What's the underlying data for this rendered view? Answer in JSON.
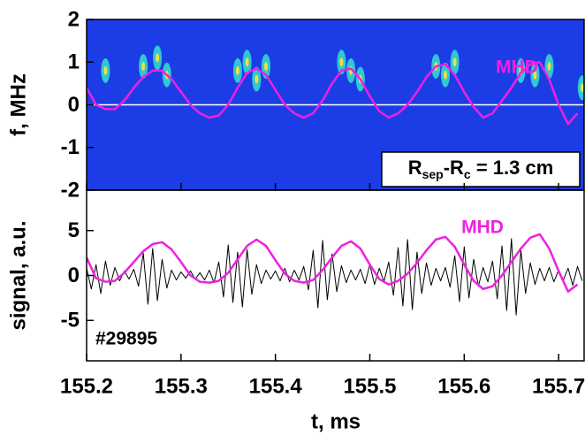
{
  "chart_data": [
    {
      "type": "spectrogram",
      "ylabel": "f, MHz",
      "background": "#1c3de6",
      "xlim": [
        155.2,
        155.727
      ],
      "ylim": [
        -2,
        2
      ],
      "yticks": [
        -2,
        -1,
        0,
        1,
        2
      ],
      "hline": 0,
      "bursts": {
        "color": "#33e0d0",
        "core_color": "#f0e040",
        "t": [
          155.22,
          155.26,
          155.275,
          155.285,
          155.36,
          155.37,
          155.38,
          155.39,
          155.47,
          155.48,
          155.49,
          155.57,
          155.58,
          155.59,
          155.66,
          155.675,
          155.69,
          155.725
        ],
        "f": [
          0.8,
          0.9,
          1.1,
          0.7,
          0.8,
          1.0,
          0.6,
          0.9,
          1.0,
          0.8,
          0.6,
          0.9,
          0.7,
          1.0,
          0.8,
          0.7,
          0.9,
          0.4
        ]
      },
      "annotation": [
        "R",
        "sep",
        "-R",
        "c",
        " = 1.3 cm"
      ],
      "series": [
        {
          "name": "MHD",
          "color": "#f020e0",
          "x": [
            155.2,
            155.21,
            155.22,
            155.23,
            155.24,
            155.25,
            155.26,
            155.27,
            155.28,
            155.29,
            155.3,
            155.31,
            155.32,
            155.33,
            155.34,
            155.35,
            155.36,
            155.37,
            155.38,
            155.39,
            155.4,
            155.41,
            155.42,
            155.43,
            155.44,
            155.45,
            155.46,
            155.47,
            155.48,
            155.49,
            155.5,
            155.51,
            155.52,
            155.53,
            155.54,
            155.55,
            155.56,
            155.57,
            155.58,
            155.59,
            155.6,
            155.61,
            155.62,
            155.63,
            155.64,
            155.65,
            155.66,
            155.67,
            155.68,
            155.69,
            155.7,
            155.71,
            155.72
          ],
          "values": [
            0.4,
            0.0,
            -0.1,
            -0.1,
            0.1,
            0.4,
            0.65,
            0.8,
            0.8,
            0.6,
            0.3,
            0.0,
            -0.2,
            -0.3,
            -0.25,
            0.0,
            0.4,
            0.75,
            0.85,
            0.7,
            0.35,
            0.0,
            -0.2,
            -0.3,
            -0.2,
            0.1,
            0.5,
            0.8,
            0.85,
            0.6,
            0.2,
            -0.15,
            -0.3,
            -0.2,
            0.0,
            0.3,
            0.65,
            0.9,
            0.95,
            0.7,
            0.3,
            -0.05,
            -0.3,
            -0.2,
            0.1,
            0.4,
            0.75,
            0.95,
            1.0,
            0.6,
            0.0,
            -0.45,
            -0.2
          ]
        }
      ]
    },
    {
      "type": "line",
      "ylabel": "signal, a.u.",
      "xlabel": "t, ms",
      "shot": "#29895",
      "xlim": [
        155.2,
        155.727
      ],
      "xticks": [
        155.2,
        155.3,
        155.4,
        155.5,
        155.6,
        155.7
      ],
      "ylim": [
        -9.5,
        9.5
      ],
      "yticks": [
        -5,
        0,
        5
      ],
      "series": [
        {
          "color": "#000000",
          "x": [
            155.2,
            155.205,
            155.21,
            155.215,
            155.22,
            155.225,
            155.23,
            155.235,
            155.24,
            155.245,
            155.25,
            155.255,
            155.26,
            155.265,
            155.27,
            155.275,
            155.28,
            155.285,
            155.29,
            155.295,
            155.3,
            155.305,
            155.31,
            155.315,
            155.32,
            155.325,
            155.33,
            155.335,
            155.34,
            155.345,
            155.35,
            155.355,
            155.36,
            155.365,
            155.37,
            155.375,
            155.38,
            155.385,
            155.39,
            155.395,
            155.4,
            155.405,
            155.41,
            155.415,
            155.42,
            155.425,
            155.43,
            155.435,
            155.44,
            155.445,
            155.45,
            155.455,
            155.46,
            155.465,
            155.47,
            155.475,
            155.48,
            155.485,
            155.49,
            155.495,
            155.5,
            155.505,
            155.51,
            155.515,
            155.52,
            155.525,
            155.53,
            155.535,
            155.54,
            155.545,
            155.55,
            155.555,
            155.56,
            155.565,
            155.57,
            155.575,
            155.58,
            155.585,
            155.59,
            155.595,
            155.6,
            155.605,
            155.61,
            155.615,
            155.62,
            155.625,
            155.63,
            155.635,
            155.64,
            155.645,
            155.65,
            155.655,
            155.66,
            155.665,
            155.67,
            155.675,
            155.68,
            155.685,
            155.69,
            155.695,
            155.7,
            155.705,
            155.71,
            155.715,
            155.72,
            155.725
          ],
          "values": [
            0.8,
            -1.5,
            1.2,
            -2.0,
            1.6,
            -1.1,
            0.9,
            -0.6,
            0.5,
            -0.4,
            0.7,
            -1.2,
            2.5,
            -3.2,
            3.0,
            -2.8,
            1.8,
            -1.4,
            0.6,
            -0.5,
            0.4,
            -0.3,
            0.5,
            -0.4,
            0.3,
            -0.5,
            0.6,
            -0.8,
            1.5,
            -2.4,
            3.4,
            -3.0,
            2.6,
            -3.5,
            2.9,
            -2.1,
            1.2,
            -0.9,
            0.6,
            -0.4,
            0.5,
            -0.6,
            0.8,
            -0.7,
            0.6,
            -0.5,
            1.0,
            -1.6,
            2.8,
            -3.6,
            3.9,
            -2.7,
            2.4,
            -1.8,
            1.1,
            -0.8,
            0.6,
            -0.5,
            0.7,
            -0.9,
            1.2,
            -1.0,
            0.8,
            -0.7,
            1.5,
            -2.2,
            3.1,
            -3.4,
            4.0,
            -3.8,
            2.6,
            -2.0,
            1.4,
            -1.1,
            0.8,
            -0.6,
            0.9,
            -1.3,
            2.2,
            -2.9,
            3.2,
            -2.5,
            1.8,
            -1.2,
            0.9,
            -0.7,
            1.6,
            -2.6,
            3.3,
            -3.9,
            4.1,
            -4.4,
            2.8,
            -2.0,
            1.4,
            -1.0,
            0.8,
            -0.6,
            0.9,
            -0.7,
            0.6,
            -0.5,
            0.8,
            -1.1,
            1.0,
            -0.6
          ]
        },
        {
          "name": "MHD",
          "color": "#f020e0",
          "x": [
            155.2,
            155.21,
            155.22,
            155.23,
            155.24,
            155.25,
            155.26,
            155.27,
            155.28,
            155.29,
            155.3,
            155.31,
            155.32,
            155.33,
            155.34,
            155.35,
            155.36,
            155.37,
            155.38,
            155.39,
            155.4,
            155.41,
            155.42,
            155.43,
            155.44,
            155.45,
            155.46,
            155.47,
            155.48,
            155.49,
            155.5,
            155.51,
            155.52,
            155.53,
            155.54,
            155.55,
            155.56,
            155.57,
            155.58,
            155.59,
            155.6,
            155.61,
            155.62,
            155.63,
            155.64,
            155.65,
            155.66,
            155.67,
            155.68,
            155.69,
            155.7,
            155.71,
            155.72
          ],
          "values": [
            2.0,
            -0.3,
            -0.7,
            -0.6,
            0.3,
            1.5,
            2.7,
            3.5,
            3.7,
            2.9,
            1.5,
            0.0,
            -0.7,
            -0.8,
            -0.6,
            0.3,
            1.8,
            3.3,
            4.0,
            3.3,
            1.7,
            0.2,
            -0.6,
            -0.8,
            -0.5,
            0.6,
            2.0,
            3.3,
            3.8,
            3.0,
            1.2,
            -0.4,
            -1.0,
            -0.6,
            0.2,
            1.4,
            2.8,
            4.0,
            4.3,
            3.2,
            1.2,
            -0.6,
            -1.5,
            -1.2,
            0.0,
            1.5,
            3.0,
            4.2,
            4.6,
            3.0,
            0.5,
            -1.8,
            -1.0
          ]
        }
      ]
    }
  ]
}
